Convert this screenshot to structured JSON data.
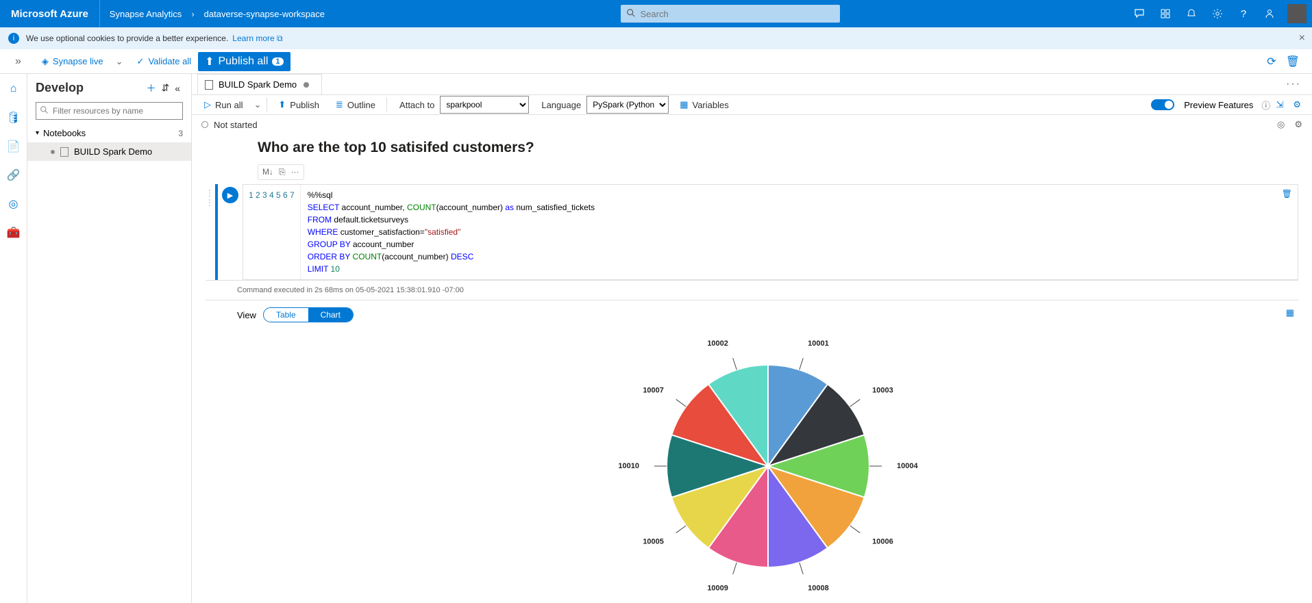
{
  "azure_bar": {
    "brand": "Microsoft Azure",
    "crumb1": "Synapse Analytics",
    "crumb2": "dataverse-synapse-workspace",
    "search_placeholder": "Search"
  },
  "banner": {
    "text": "We use optional cookies to provide a better experience.",
    "learn_more": "Learn more"
  },
  "toolbar": {
    "synapse_live": "Synapse live",
    "validate_all": "Validate all",
    "publish_all": "Publish all",
    "publish_badge": "1"
  },
  "tree": {
    "title": "Develop",
    "filter_placeholder": "Filter resources by name",
    "section_label": "Notebooks",
    "section_count": "3",
    "item1": "BUILD Spark Demo"
  },
  "tab": {
    "name": "BUILD Spark Demo"
  },
  "nb_toolbar": {
    "run_all": "Run all",
    "publish": "Publish",
    "outline": "Outline",
    "attach_to": "Attach to",
    "attach_value": "sparkpool",
    "language": "Language",
    "language_value": "PySpark (Python)",
    "variables": "Variables",
    "preview": "Preview Features"
  },
  "status": {
    "not_started": "Not started"
  },
  "markdown": {
    "heading": "Who are the top 10 satisifed customers?"
  },
  "cell_toolbar": {
    "b1": "M↓",
    "b2": "⎘",
    "b3": "···"
  },
  "code": {
    "raw": "%%sql\nSELECT account_number, COUNT(account_number) as num_satisfied_tickets\nFROM default.ticketsurveys\nWHERE customer_satisfaction=\"satisfied\"\nGROUP BY account_number\nORDER BY COUNT(account_number) DESC\nLIMIT 10"
  },
  "exec": {
    "msg": "Command executed in 2s 68ms on 05-05-2021 15:38:01.910 -07:00"
  },
  "output_ui": {
    "view_label": "View",
    "table_label": "Table",
    "chart_label": "Chart"
  },
  "chart": {
    "type": "pie",
    "radius": 148,
    "label_offset": 40,
    "label_fontsize": 11,
    "label_fontweight": "700",
    "label_color": "#222222",
    "background_color": "#ffffff",
    "leader_line_color": "#444444",
    "slice_stroke": "#ffffff",
    "slice_stroke_width": 2,
    "slices": [
      {
        "label": "10001",
        "value": 10,
        "color": "#5b9bd5"
      },
      {
        "label": "10003",
        "value": 10,
        "color": "#34383c"
      },
      {
        "label": "10004",
        "value": 10,
        "color": "#70d158"
      },
      {
        "label": "10006",
        "value": 10,
        "color": "#f2a23c"
      },
      {
        "label": "10008",
        "value": 10,
        "color": "#7b68ee"
      },
      {
        "label": "10009",
        "value": 10,
        "color": "#e85a8a"
      },
      {
        "label": "10005",
        "value": 10,
        "color": "#e7d64a"
      },
      {
        "label": "10010",
        "value": 10,
        "color": "#1d7874"
      },
      {
        "label": "10007",
        "value": 10,
        "color": "#e74c3c"
      },
      {
        "label": "10002",
        "value": 10,
        "color": "#5fd9c6"
      }
    ]
  }
}
